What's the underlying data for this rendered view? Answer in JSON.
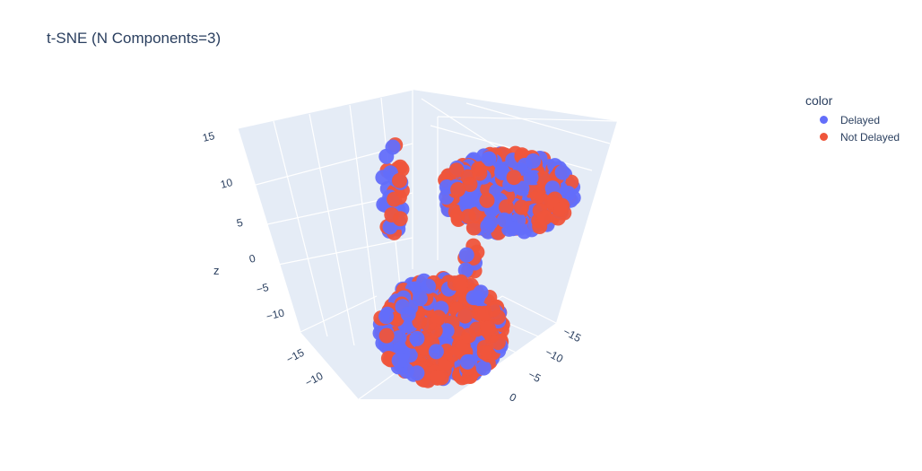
{
  "chart_data": {
    "type": "scatter",
    "title": "t-SNE (N Components=3)",
    "zlabel": "z",
    "z_ticks": [
      "15",
      "10",
      "5",
      "0",
      "−5",
      "−10"
    ],
    "x_ticks": [
      "−15",
      "−10"
    ],
    "y_ticks": [
      "−15",
      "−10",
      "−5",
      "0"
    ],
    "legend_title": "color",
    "legend_position": "top-right",
    "grid": true,
    "series": [
      {
        "name": "Delayed",
        "color": "#636efa"
      },
      {
        "name": "Not Delayed",
        "color": "#ef553b"
      }
    ],
    "clusters": [
      {
        "label": "upper-left strand",
        "approx_points": 45
      },
      {
        "label": "upper-right cluster",
        "approx_points": 420
      },
      {
        "label": "connecting neck",
        "approx_points": 10
      },
      {
        "label": "lower cluster",
        "approx_points": 600
      }
    ]
  }
}
